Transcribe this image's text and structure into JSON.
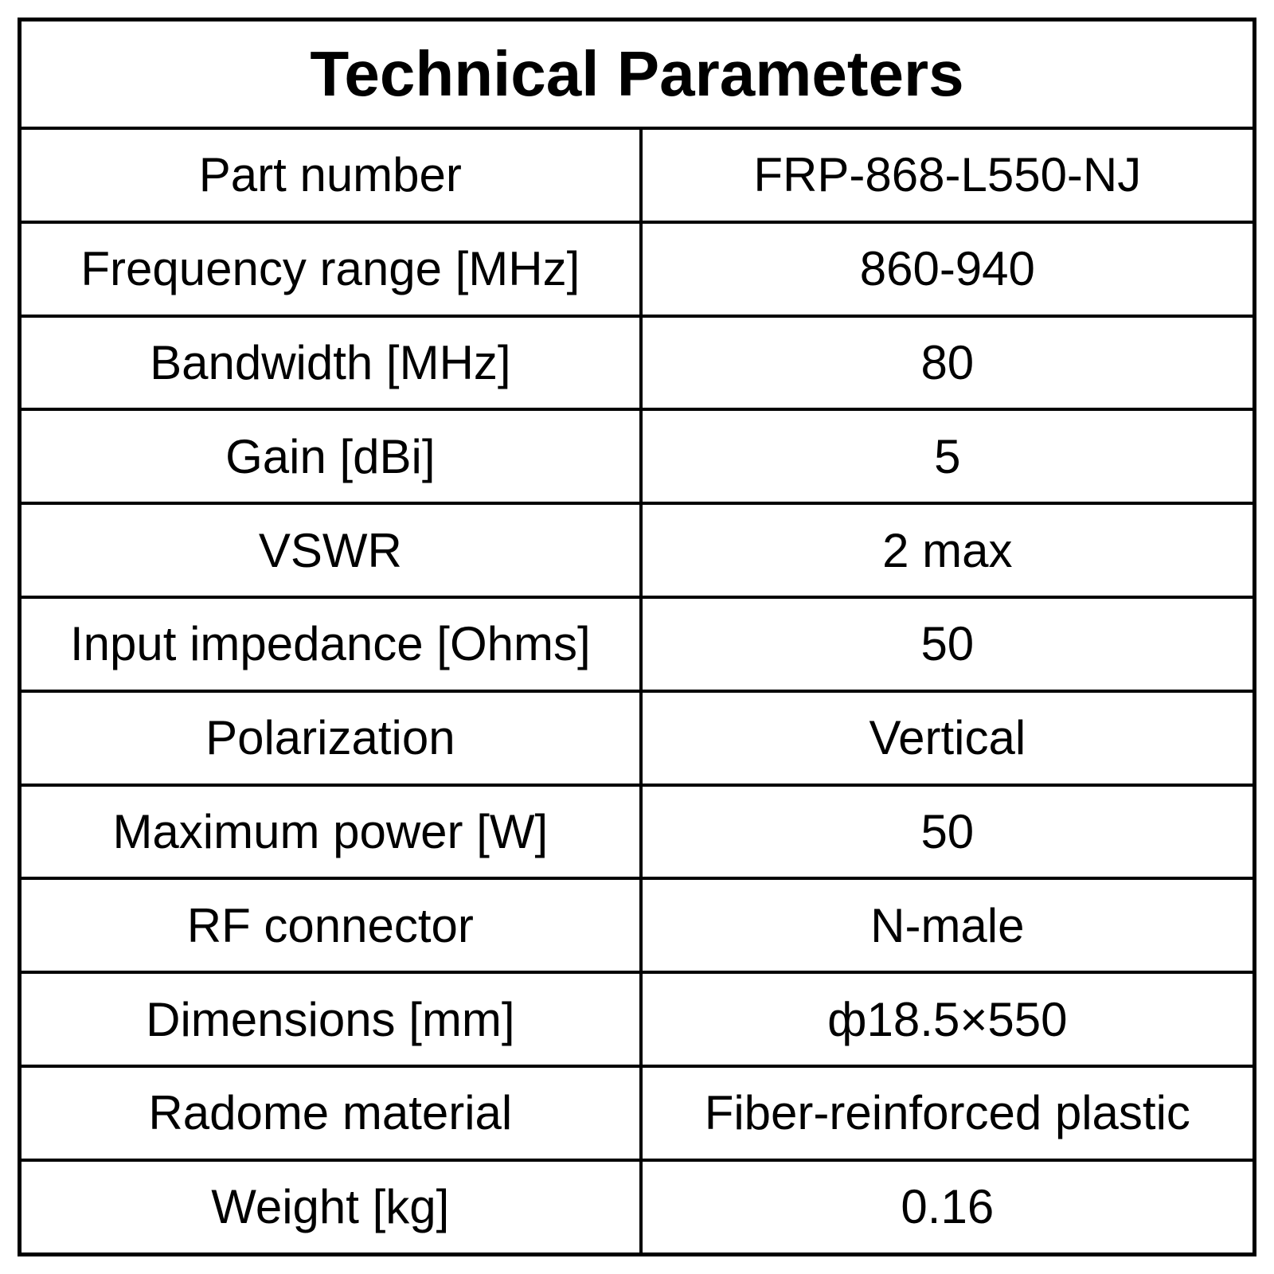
{
  "table": {
    "title": "Technical Parameters",
    "rows": [
      [
        "Part number",
        "FRP-868-L550-NJ"
      ],
      [
        "Frequency range [MHz]",
        "860-940"
      ],
      [
        "Bandwidth [MHz]",
        "80"
      ],
      [
        "Gain [dBi]",
        "5"
      ],
      [
        "VSWR",
        "2 max"
      ],
      [
        "Input impedance [Ohms]",
        "50"
      ],
      [
        "Polarization",
        "Vertical"
      ],
      [
        "Maximum power [W]",
        "50"
      ],
      [
        "RF connector",
        "N-male"
      ],
      [
        "Dimensions [mm]",
        "ф18.5×550"
      ],
      [
        "Radome material",
        "Fiber-reinforced plastic"
      ],
      [
        "Weight [kg]",
        "0.16"
      ]
    ]
  }
}
